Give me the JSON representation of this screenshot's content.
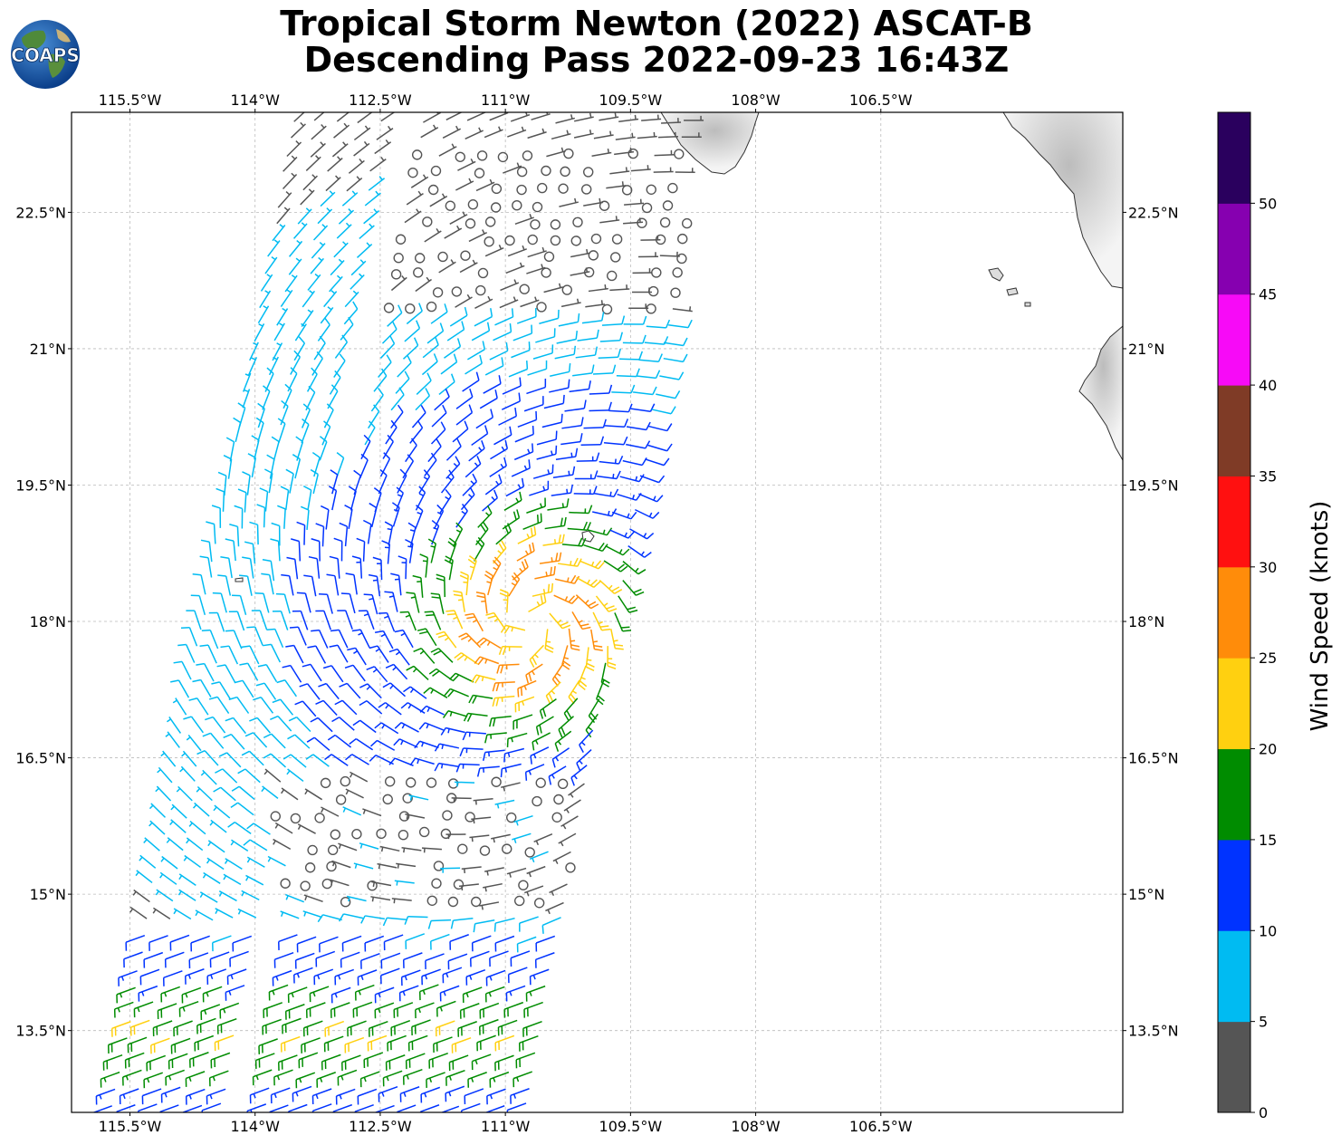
{
  "title": {
    "line1": "Tropical Storm Newton (2022) ASCAT-B",
    "line2": "Descending Pass 2022-09-23 16:43Z"
  },
  "logo": {
    "text": "COAPS",
    "icon": "globe-logo-icon"
  },
  "map": {
    "lon_range": [
      -116.2,
      -103.6
    ],
    "lat_range": [
      12.6,
      23.6
    ],
    "lon_ticks": [
      {
        "value": -115.5,
        "label": "115.5°W"
      },
      {
        "value": -114.0,
        "label": "114°W"
      },
      {
        "value": -112.5,
        "label": "112.5°W"
      },
      {
        "value": -111.0,
        "label": "111°W"
      },
      {
        "value": -109.5,
        "label": "109.5°W"
      },
      {
        "value": -108.0,
        "label": "108°W"
      },
      {
        "value": -106.5,
        "label": "106.5°W"
      }
    ],
    "lat_ticks": [
      {
        "value": 22.5,
        "label": "22.5°N"
      },
      {
        "value": 21.0,
        "label": "21°N"
      },
      {
        "value": 19.5,
        "label": "19.5°N"
      },
      {
        "value": 18.0,
        "label": "18°N"
      },
      {
        "value": 16.5,
        "label": "16.5°N"
      },
      {
        "value": 15.0,
        "label": "15°N"
      },
      {
        "value": 13.5,
        "label": "13.5°N"
      }
    ],
    "grid": true,
    "storm_center": {
      "lon": -110.7,
      "lat": 18.0
    },
    "swath": {
      "lat_top": 23.6,
      "lat_bottom": 12.6,
      "lon_w_top": -113.6,
      "lon_e_top": -108.6,
      "lon_w_bottom": -115.8,
      "lon_e_bottom": -110.6,
      "lon_gap_top": -112.2,
      "lon_gap_bottom": -114.2
    }
  },
  "colorbar": {
    "label": "Wind Speed (knots)",
    "bins": [
      {
        "min": 0,
        "max": 5,
        "color": "#555555"
      },
      {
        "min": 5,
        "max": 10,
        "color": "#00bbf2"
      },
      {
        "min": 10,
        "max": 15,
        "color": "#0033ff"
      },
      {
        "min": 15,
        "max": 20,
        "color": "#008c00"
      },
      {
        "min": 20,
        "max": 25,
        "color": "#ffd010"
      },
      {
        "min": 25,
        "max": 30,
        "color": "#ff8c0a"
      },
      {
        "min": 30,
        "max": 35,
        "color": "#ff1010"
      },
      {
        "min": 35,
        "max": 40,
        "color": "#7f3b26"
      },
      {
        "min": 40,
        "max": 45,
        "color": "#f70af7"
      },
      {
        "min": 45,
        "max": 50,
        "color": "#8600b0"
      },
      {
        "min": 50,
        "max": 55,
        "color": "#2a005e"
      }
    ],
    "ticks": [
      "0",
      "5",
      "10",
      "15",
      "20",
      "25",
      "30",
      "35",
      "40",
      "45",
      "50"
    ]
  }
}
